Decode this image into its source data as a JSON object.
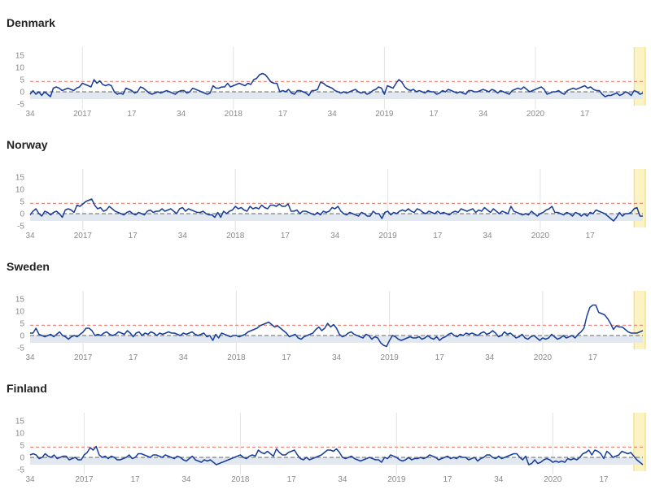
{
  "chart_data": [
    {
      "type": "line",
      "title": "Denmark",
      "ylim": [
        -5,
        15
      ],
      "yticks": [
        -5,
        0,
        5,
        10,
        15
      ],
      "xticks": [
        {
          "i": 0,
          "label": "34"
        },
        {
          "i": 18,
          "label": "2017"
        },
        {
          "i": 35,
          "label": "17"
        },
        {
          "i": 52,
          "label": "34"
        },
        {
          "i": 70,
          "label": "2018"
        },
        {
          "i": 87,
          "label": "17"
        },
        {
          "i": 104,
          "label": "34"
        },
        {
          "i": 122,
          "label": "2019"
        },
        {
          "i": 139,
          "label": "17"
        },
        {
          "i": 156,
          "label": "34"
        },
        {
          "i": 174,
          "label": "2020"
        },
        {
          "i": 191,
          "label": "17"
        }
      ],
      "threshold_upper": 4.2,
      "baseline": 0,
      "band": [
        -3,
        0
      ],
      "highlight_last_weeks": 3,
      "colors": {
        "line": "#1a3f9a",
        "threshold": "#f08a7c",
        "baseline": "#666666",
        "band": "#e2e8f0",
        "highlight": "#fbf3c4",
        "highlight_edge": "#f2d96b",
        "grid": "#e2e2e2"
      },
      "series": [
        {
          "values": [
            -1,
            0.5,
            -1,
            0,
            -1.5,
            0,
            -1,
            -2,
            1.5,
            2,
            1.5,
            0.5,
            1,
            1.5,
            1,
            0.5,
            1.5,
            2,
            3.5,
            3,
            2.5,
            2,
            5,
            3.5,
            4.5,
            3,
            2.5,
            3,
            2.5,
            0,
            -1,
            -0.5,
            -1,
            1.5,
            1,
            0.5,
            -0.5,
            0,
            2,
            1.5,
            0.5,
            -0.5,
            -1,
            -0.5,
            0,
            -0.5,
            0,
            0.5,
            0,
            -0.5,
            -1,
            0,
            0.5,
            0.5,
            -0.5,
            0,
            1.5,
            1,
            0.5,
            0,
            -0.5,
            -1,
            -0.5,
            2.5,
            1.5,
            1.5,
            2,
            2,
            3.5,
            2,
            2.5,
            3,
            3.5,
            3,
            2.5,
            3.5,
            3,
            5,
            5.5,
            7,
            7.5,
            7,
            5.5,
            4,
            3.5,
            3.5,
            0,
            0.5,
            0,
            1,
            -0.5,
            -1,
            0.5,
            0.5,
            0,
            -0.5,
            -1.5,
            0.5,
            0.5,
            1,
            4,
            3.5,
            2.5,
            2,
            1.5,
            0.5,
            0,
            -0.5,
            0,
            -0.5,
            0,
            0.5,
            1,
            0,
            -0.5,
            0,
            -1,
            -0.5,
            0.5,
            1,
            2,
            1.5,
            -1,
            2.5,
            2,
            1.5,
            3.5,
            5,
            4,
            2,
            1,
            0.5,
            1,
            0,
            0.5,
            0,
            -0.5,
            0.5,
            0,
            0,
            -1,
            -0.5,
            0.5,
            0,
            1,
            0.5,
            0,
            -0.5,
            0,
            -0.5,
            -1,
            0.5,
            0.5,
            0,
            0,
            0.5,
            1,
            0.5,
            0,
            1,
            0.5,
            -0.5,
            0.5,
            0,
            -0.5,
            -1,
            0.5,
            1,
            1.5,
            1,
            2,
            1,
            0,
            0.5,
            1,
            1.5,
            2,
            1,
            -1,
            -0.5,
            0,
            0,
            0.5,
            -0.5,
            -1,
            0.5,
            1,
            1.5,
            1,
            1.5,
            2,
            2.5,
            1.5,
            2,
            1,
            0.5,
            0.5,
            -1,
            -2,
            -1.5,
            -1.5,
            -1,
            -0.5,
            -1.5,
            -1,
            0,
            -0.5,
            -1.5,
            0.5,
            0,
            -1,
            -0.5
          ]
        }
      ]
    },
    {
      "type": "line",
      "title": "Norway",
      "ylim": [
        -5,
        15
      ],
      "yticks": [
        -5,
        0,
        5,
        10,
        15
      ],
      "xticks": [
        {
          "i": 0,
          "label": "34"
        },
        {
          "i": 18,
          "label": "2017"
        },
        {
          "i": 35,
          "label": "17"
        },
        {
          "i": 52,
          "label": "34"
        },
        {
          "i": 70,
          "label": "2018"
        },
        {
          "i": 87,
          "label": "17"
        },
        {
          "i": 104,
          "label": "34"
        },
        {
          "i": 122,
          "label": "2019"
        },
        {
          "i": 139,
          "label": "17"
        },
        {
          "i": 156,
          "label": "34"
        },
        {
          "i": 174,
          "label": "2020"
        },
        {
          "i": 191,
          "label": "17"
        }
      ],
      "threshold_upper": 4.2,
      "baseline": 0,
      "band": [
        -3,
        0
      ],
      "highlight_last_weeks": 3,
      "colors": {
        "line": "#1a3f9a",
        "threshold": "#f08a7c",
        "baseline": "#666666",
        "band": "#e2e8f0",
        "highlight": "#fbf3c4",
        "highlight_edge": "#f2d96b",
        "grid": "#e2e2e2"
      },
      "series": [
        {
          "values": [
            -0.5,
            1,
            2,
            0,
            -1,
            1,
            0.5,
            -0.5,
            0.5,
            1,
            0,
            -1.5,
            1.5,
            2,
            1.5,
            0.5,
            3.5,
            3,
            4,
            5,
            5.5,
            6,
            3.5,
            2,
            2.5,
            1,
            1.5,
            3,
            2,
            1,
            0.5,
            0,
            -0.5,
            0.5,
            1,
            0,
            -0.5,
            0.5,
            0,
            -0.5,
            1,
            1.5,
            0.5,
            1,
            1,
            2,
            1,
            1.5,
            2,
            1,
            0,
            2,
            2.5,
            1,
            2,
            1.5,
            1,
            0.5,
            0.5,
            1,
            0,
            -0.5,
            -0.5,
            -1.5,
            0.5,
            -1.5,
            1,
            0,
            1,
            1.5,
            3,
            2,
            2.5,
            1.5,
            1,
            3,
            2,
            2.5,
            2,
            3.5,
            2.5,
            2,
            3.5,
            3.5,
            3,
            4,
            3,
            3,
            4,
            1,
            1,
            1.5,
            0,
            1,
            1,
            0.5,
            0,
            -0.5,
            0.5,
            -0.5,
            1,
            0.5,
            1,
            2.5,
            2,
            3,
            1,
            0,
            -0.5,
            0.5,
            0,
            -0.5,
            -1,
            0.5,
            0,
            -1,
            -1,
            1,
            0,
            0,
            -2,
            0.5,
            1,
            -0.5,
            0.5,
            0,
            1,
            1.5,
            1,
            2,
            1,
            0.5,
            2,
            1.5,
            0.5,
            0,
            1,
            0.5,
            0,
            1,
            0,
            0.5,
            0,
            -0.5,
            0.5,
            1,
            0.5,
            2,
            1.5,
            1,
            1.5,
            2,
            0.5,
            1.5,
            1,
            2.5,
            1.5,
            0.5,
            2,
            1,
            0,
            1,
            0.5,
            0,
            3,
            1,
            0.5,
            0,
            -0.5,
            0,
            -0.5,
            1,
            0,
            -1,
            0,
            0.5,
            1.5,
            2,
            3,
            0.5,
            0.5,
            0,
            -0.5,
            0.5,
            0,
            -1,
            0.5,
            0,
            -1,
            0,
            -1,
            0.5,
            0,
            1.5,
            1,
            0.5,
            0,
            -1,
            -2,
            -3,
            -1.5,
            0.5,
            -1,
            0,
            0,
            0.5,
            2,
            2.5,
            -1,
            -1
          ]
        }
      ]
    },
    {
      "type": "line",
      "title": "Sweden",
      "ylim": [
        -5,
        15
      ],
      "yticks": [
        -5,
        0,
        5,
        10,
        15
      ],
      "xticks": [
        {
          "i": 0,
          "label": "34"
        },
        {
          "i": 18,
          "label": "2017"
        },
        {
          "i": 35,
          "label": "17"
        },
        {
          "i": 52,
          "label": "34"
        },
        {
          "i": 70,
          "label": "2018"
        },
        {
          "i": 87,
          "label": "17"
        },
        {
          "i": 104,
          "label": "34"
        },
        {
          "i": 122,
          "label": "2019"
        },
        {
          "i": 139,
          "label": "17"
        },
        {
          "i": 156,
          "label": "34"
        },
        {
          "i": 174,
          "label": "2020"
        },
        {
          "i": 191,
          "label": "17"
        }
      ],
      "threshold_upper": 4.2,
      "baseline": 0,
      "band": [
        -3,
        0
      ],
      "highlight_last_weeks": 3,
      "colors": {
        "line": "#1a3f9a",
        "threshold": "#f08a7c",
        "baseline": "#666666",
        "band": "#e2e8f0",
        "highlight": "#fbf3c4",
        "highlight_edge": "#f2d96b",
        "grid": "#e2e2e2"
      },
      "series": [
        {
          "values": [
            1,
            1,
            3,
            0.5,
            0,
            -0.5,
            0,
            0.5,
            -0.5,
            0.5,
            1.5,
            0,
            -0.5,
            -1.5,
            -0.5,
            0,
            -0.5,
            0.5,
            1.5,
            3,
            3,
            2,
            0,
            0.5,
            0,
            1,
            1.5,
            0.5,
            0,
            0.5,
            1.5,
            1,
            0.5,
            2,
            1,
            -0.5,
            1,
            1.5,
            0,
            1,
            0.5,
            1.5,
            1,
            0,
            1,
            0.5,
            1,
            1.5,
            1,
            1,
            0.5,
            0,
            1,
            0.5,
            1,
            1.5,
            0.5,
            0,
            0.5,
            1,
            -0.5,
            0,
            -2,
            0.5,
            -1,
            1,
            0.5,
            0,
            -0.5,
            0,
            0,
            -0.5,
            0,
            0.5,
            1.5,
            2,
            2.5,
            3,
            4,
            4.5,
            5,
            5.5,
            4.5,
            3.5,
            4,
            3,
            2,
            1,
            -0.5,
            0,
            0.5,
            -1,
            -1.5,
            -0.5,
            0,
            0.5,
            1,
            2.5,
            3.5,
            2,
            3,
            5,
            3.5,
            4.5,
            3,
            0.5,
            -0.5,
            0,
            1,
            1.5,
            0.5,
            0,
            -0.5,
            -1,
            0.5,
            0,
            -1.5,
            -0.5,
            -1,
            -3,
            -4,
            -4.5,
            -2,
            0,
            -0.5,
            -1.5,
            -2,
            -1.5,
            -1,
            -0.5,
            -1,
            -1,
            -0.5,
            -1.5,
            -1,
            0,
            -1,
            -1.5,
            -0.5,
            -2,
            -1,
            -0.5,
            0.5,
            1,
            0,
            -0.5,
            0.5,
            0,
            1,
            0.5,
            1,
            0.5,
            0,
            1,
            1.5,
            0.5,
            1,
            2,
            1,
            -0.5,
            0,
            1.5,
            0.5,
            1,
            0,
            -1,
            -0.5,
            0.5,
            -1,
            -1.5,
            -0.5,
            0,
            -1,
            -2,
            -1,
            -1.5,
            -1,
            0.5,
            -0.5,
            -1.5,
            -1,
            0,
            -1,
            -0.5,
            0,
            -1,
            0.5,
            1.5,
            3,
            8,
            11.5,
            12.5,
            12.5,
            9.5,
            9,
            8.5,
            7,
            5,
            2.5,
            4,
            3.5,
            3.5,
            2.5,
            1.5,
            1,
            1,
            1,
            1.5,
            2
          ]
        }
      ]
    },
    {
      "type": "line",
      "title": "Finland",
      "ylim": [
        -5,
        15
      ],
      "yticks": [
        -5,
        0,
        5,
        10,
        15
      ],
      "xticks": [
        {
          "i": 0,
          "label": "34"
        },
        {
          "i": 18,
          "label": "2017"
        },
        {
          "i": 35,
          "label": "17"
        },
        {
          "i": 52,
          "label": "34"
        },
        {
          "i": 70,
          "label": "2018"
        },
        {
          "i": 87,
          "label": "17"
        },
        {
          "i": 104,
          "label": "34"
        },
        {
          "i": 122,
          "label": "2019"
        },
        {
          "i": 139,
          "label": "17"
        },
        {
          "i": 156,
          "label": "34"
        },
        {
          "i": 174,
          "label": "2020"
        },
        {
          "i": 191,
          "label": "17"
        }
      ],
      "threshold_upper": 4.2,
      "baseline": 0,
      "band": [
        -3,
        0
      ],
      "highlight_last_weeks": 3,
      "colors": {
        "line": "#1a3f9a",
        "threshold": "#f08a7c",
        "baseline": "#666666",
        "band": "#e2e8f0",
        "highlight": "#fbf3c4",
        "highlight_edge": "#f2d96b",
        "grid": "#e2e2e2"
      },
      "series": [
        {
          "values": [
            1,
            1.5,
            1,
            -0.5,
            0,
            1.5,
            0.5,
            0,
            1,
            -0.5,
            0,
            0.5,
            0.5,
            -1,
            -0.5,
            0,
            -1,
            -1,
            1,
            2,
            4,
            3,
            4.5,
            1,
            0,
            0.5,
            -0.5,
            0.5,
            0,
            -1,
            -1,
            -0.5,
            0,
            1,
            -0.5,
            0,
            1.5,
            1.5,
            1,
            0.5,
            0,
            1,
            1,
            0.5,
            0,
            1,
            0.5,
            0,
            -0.5,
            0.5,
            0,
            -1,
            -1.5,
            -0.5,
            0.5,
            -1,
            -1.5,
            -2,
            -1,
            -1.5,
            -1,
            -2,
            -3,
            -2.5,
            -2,
            -1.5,
            -1,
            -0.5,
            0,
            0.5,
            1,
            0,
            -0.5,
            0.5,
            1,
            0.5,
            3,
            2,
            1.5,
            2.5,
            1.5,
            0.5,
            3.5,
            2,
            1,
            1,
            2,
            2.5,
            3,
            1,
            -0.5,
            -1,
            0,
            -1,
            -0.5,
            0,
            0.5,
            1,
            2,
            3,
            3,
            2.5,
            3.5,
            2,
            0,
            -0.5,
            0,
            0.5,
            -0.5,
            -1,
            -1.5,
            -1,
            -0.5,
            0,
            -0.5,
            -1,
            -1,
            -2,
            0,
            -0.5,
            1,
            0.5,
            0,
            -1,
            -1.5,
            -1,
            0,
            -1,
            -0.5,
            -0.5,
            0,
            -0.5,
            0,
            1,
            0.5,
            0,
            -1,
            -0.5,
            0,
            0.5,
            -0.5,
            0,
            -0.5,
            0.5,
            0,
            0,
            -1,
            -0.5,
            0,
            -1.5,
            -0.5,
            0,
            1,
            1,
            0,
            -0.5,
            0.5,
            -0.5,
            0,
            0.5,
            1,
            1.5,
            1.5,
            0,
            -1,
            0.5,
            -3,
            -2.5,
            -1,
            -2.5,
            -2,
            -1,
            -0.5,
            -1,
            -2,
            -1.5,
            -2,
            -1.5,
            -2,
            -0.5,
            -1,
            -0.5,
            -1,
            0,
            1.5,
            2,
            3,
            1,
            3,
            2.5,
            1.5,
            -0.5,
            2.5,
            1.5,
            0,
            0.5,
            1,
            2.5,
            2,
            1.5,
            2,
            0.5,
            -1,
            -2,
            -3
          ]
        }
      ]
    }
  ]
}
